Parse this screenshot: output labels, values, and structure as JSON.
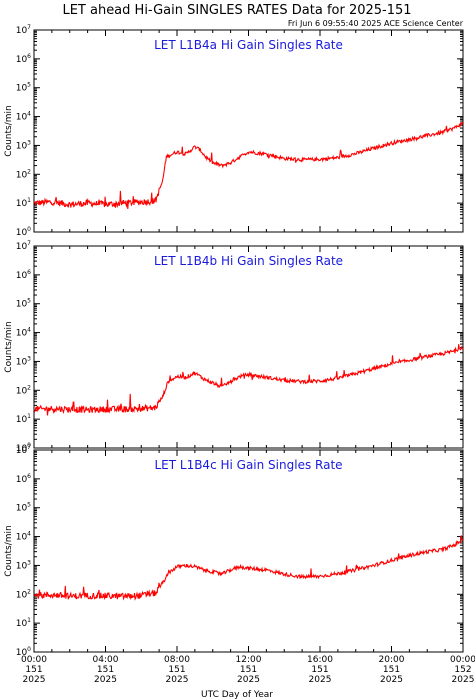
{
  "title": "LET ahead Hi-Gain SINGLES RATES Data for 2025-151",
  "timestamp": "Fri Jun  6 09:55:40 2025 ACE Science Center",
  "xlabel": "UTC Day of Year",
  "colors": {
    "line": "#ff0000",
    "panel_title": "#1a1adc",
    "axes": "#000000"
  },
  "chart_data": [
    {
      "type": "line",
      "title": "LET L1B4a Hi Gain Singles Rate",
      "ylabel": "Counts/min",
      "yscale": "log",
      "ylim": [
        1,
        10000000
      ],
      "xlim": [
        0,
        24
      ],
      "x_unit": "hours UTC",
      "y_ticks": [
        "10^0",
        "10^1",
        "10^2",
        "10^3",
        "10^4",
        "10^5",
        "10^6",
        "10^7"
      ],
      "series": [
        {
          "name": "",
          "color": "#ff0000",
          "points": [
            [
              0,
              10
            ],
            [
              1,
              11
            ],
            [
              2,
              9
            ],
            [
              3,
              10
            ],
            [
              4,
              9
            ],
            [
              5,
              10
            ],
            [
              6,
              11
            ],
            [
              6.8,
              12
            ],
            [
              7.2,
              60
            ],
            [
              7.4,
              400
            ],
            [
              8,
              600
            ],
            [
              8.5,
              500
            ],
            [
              9,
              900
            ],
            [
              9.3,
              700
            ],
            [
              9.6,
              400
            ],
            [
              10,
              250
            ],
            [
              10.5,
              200
            ],
            [
              11,
              250
            ],
            [
              11.5,
              400
            ],
            [
              12,
              600
            ],
            [
              13,
              500
            ],
            [
              14,
              350
            ],
            [
              15,
              320
            ],
            [
              16,
              330
            ],
            [
              17,
              380
            ],
            [
              18,
              520
            ],
            [
              19,
              800
            ],
            [
              20,
              1200
            ],
            [
              21,
              1600
            ],
            [
              22,
              2200
            ],
            [
              22.8,
              2800
            ],
            [
              23.5,
              4000
            ],
            [
              24,
              6000
            ]
          ]
        }
      ]
    },
    {
      "type": "line",
      "title": "LET L1B4b Hi Gain Singles Rate",
      "ylabel": "Counts/min",
      "yscale": "log",
      "ylim": [
        1,
        10000000
      ],
      "xlim": [
        0,
        24
      ],
      "x_unit": "hours UTC",
      "y_ticks": [
        "10^0",
        "10^1",
        "10^2",
        "10^3",
        "10^4",
        "10^5",
        "10^6",
        "10^7"
      ],
      "series": [
        {
          "name": "",
          "color": "#ff0000",
          "points": [
            [
              0,
              22
            ],
            [
              1,
              23
            ],
            [
              2,
              22
            ],
            [
              3,
              21
            ],
            [
              4,
              22
            ],
            [
              5,
              22
            ],
            [
              6,
              23
            ],
            [
              6.8,
              25
            ],
            [
              7.2,
              60
            ],
            [
              7.5,
              200
            ],
            [
              8,
              300
            ],
            [
              8.5,
              280
            ],
            [
              9,
              400
            ],
            [
              9.5,
              250
            ],
            [
              10,
              180
            ],
            [
              10.5,
              130
            ],
            [
              11,
              200
            ],
            [
              11.5,
              300
            ],
            [
              12,
              350
            ],
            [
              13,
              280
            ],
            [
              14,
              220
            ],
            [
              15,
              200
            ],
            [
              16,
              210
            ],
            [
              17,
              260
            ],
            [
              18,
              380
            ],
            [
              19,
              560
            ],
            [
              20,
              820
            ],
            [
              21,
              1100
            ],
            [
              22,
              1500
            ],
            [
              22.8,
              1800
            ],
            [
              23.5,
              2300
            ],
            [
              24,
              3200
            ]
          ]
        }
      ]
    },
    {
      "type": "line",
      "title": "LET L1B4c Hi Gain Singles Rate",
      "ylabel": "Counts/min",
      "yscale": "log",
      "ylim": [
        1,
        10000000
      ],
      "xlim": [
        0,
        24
      ],
      "x_unit": "hours UTC",
      "x_tick_labels": [
        [
          "00:00",
          "151",
          "2025"
        ],
        [
          "04:00",
          "151",
          "2025"
        ],
        [
          "08:00",
          "151",
          "2025"
        ],
        [
          "12:00",
          "151",
          "2025"
        ],
        [
          "16:00",
          "151",
          "2025"
        ],
        [
          "20:00",
          "151",
          "2025"
        ],
        [
          "00:00",
          "152",
          "2025"
        ]
      ],
      "y_ticks": [
        "10^0",
        "10^1",
        "10^2",
        "10^3",
        "10^4",
        "10^5",
        "10^6",
        "10^7"
      ],
      "series": [
        {
          "name": "",
          "color": "#ff0000",
          "points": [
            [
              0,
              90
            ],
            [
              1,
              95
            ],
            [
              2,
              85
            ],
            [
              3,
              90
            ],
            [
              4,
              88
            ],
            [
              5,
              85
            ],
            [
              6,
              90
            ],
            [
              6.8,
              110
            ],
            [
              7.2,
              250
            ],
            [
              7.6,
              600
            ],
            [
              8,
              900
            ],
            [
              8.5,
              1000
            ],
            [
              9,
              900
            ],
            [
              9.5,
              700
            ],
            [
              10,
              600
            ],
            [
              10.5,
              500
            ],
            [
              11,
              700
            ],
            [
              11.5,
              900
            ],
            [
              12,
              800
            ],
            [
              13,
              700
            ],
            [
              14,
              500
            ],
            [
              15,
              400
            ],
            [
              16,
              420
            ],
            [
              17,
              520
            ],
            [
              18,
              700
            ],
            [
              19,
              1000
            ],
            [
              20,
              1500
            ],
            [
              21,
              2200
            ],
            [
              22,
              3000
            ],
            [
              22.8,
              3500
            ],
            [
              23.5,
              5000
            ],
            [
              24,
              8000
            ]
          ]
        }
      ]
    }
  ]
}
